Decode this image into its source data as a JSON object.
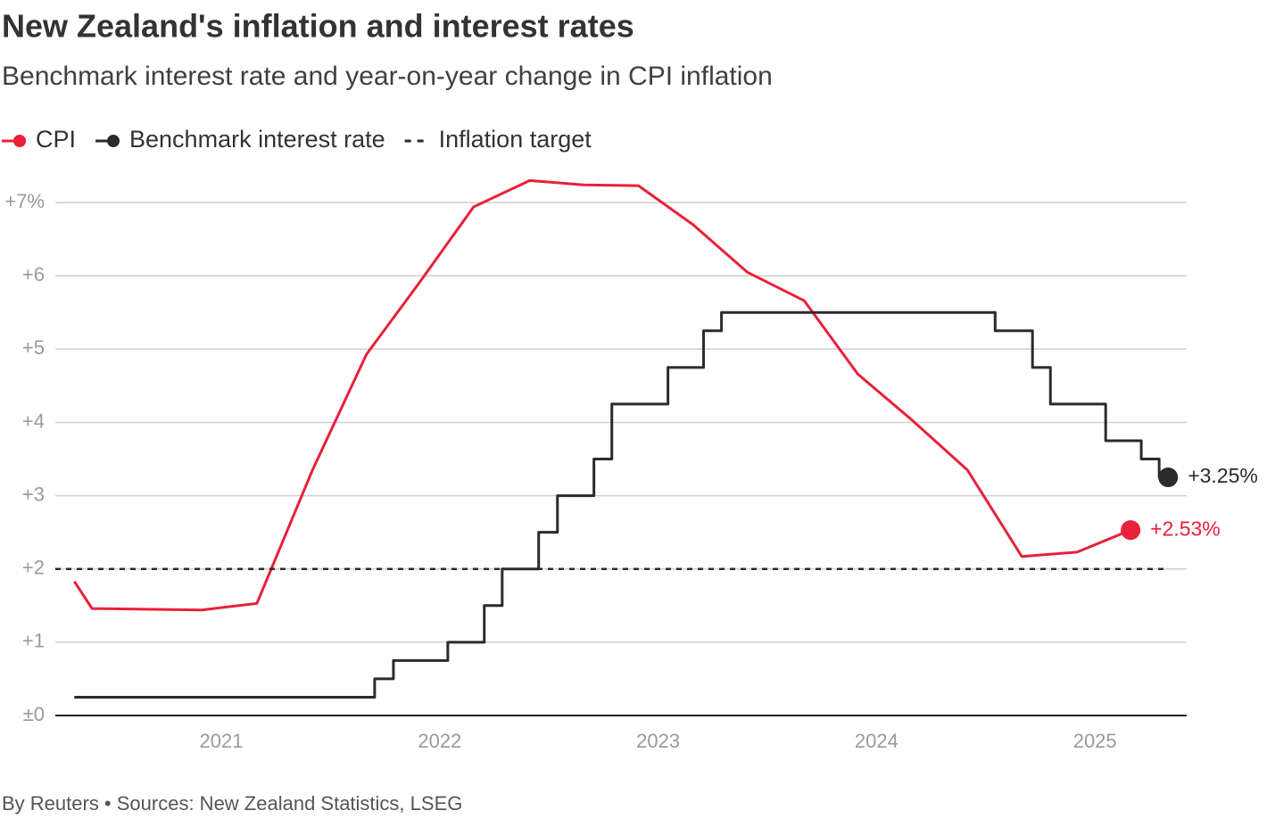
{
  "chart_data": {
    "type": "line",
    "title": "New Zealand's inflation and interest rates",
    "subtitle": "Benchmark interest rate and year-on-year change in CPI inflation",
    "source": "By Reuters • Sources: New Zealand Statistics, LSEG",
    "xlim": [
      2020.24,
      2025.42
    ],
    "xticks": [
      2021,
      2022,
      2023,
      2024,
      2025
    ],
    "ylim": [
      0,
      7.5
    ],
    "yticks": [
      {
        "value": 0,
        "label": "±0"
      },
      {
        "value": 1,
        "label": "+1"
      },
      {
        "value": 2,
        "label": "+2"
      },
      {
        "value": 3,
        "label": "+3"
      },
      {
        "value": 4,
        "label": "+4"
      },
      {
        "value": 5,
        "label": "+5"
      },
      {
        "value": 6,
        "label": "+6"
      },
      {
        "value": 7,
        "label": "+7%"
      }
    ],
    "grid": true,
    "legend": "top-left",
    "series": [
      {
        "name": "CPI",
        "color": "#e8203a",
        "line_style": "solid",
        "x": [
          2020.327,
          2020.408,
          2020.657,
          2020.91,
          2021.163,
          2021.416,
          2021.665,
          2021.91,
          2022.155,
          2022.412,
          2022.661,
          2022.91,
          2023.159,
          2023.408,
          2023.669,
          2023.914,
          2024.163,
          2024.416,
          2024.665,
          2024.918,
          2025.163
        ],
        "values": [
          1.83,
          1.46,
          1.45,
          1.44,
          1.53,
          3.34,
          4.93,
          5.92,
          6.94,
          7.3,
          7.24,
          7.23,
          6.7,
          6.05,
          5.66,
          4.66,
          4.03,
          3.35,
          2.17,
          2.23,
          2.53
        ],
        "value_labels": [
          null,
          null,
          null,
          null,
          null,
          null,
          null,
          null,
          null,
          null,
          null,
          null,
          null,
          null,
          null,
          null,
          null,
          null,
          null,
          null,
          "+2.53%"
        ]
      },
      {
        "name": "Benchmark interest rate",
        "color": "#2b2b2b",
        "line_style": "step",
        "x": [
          2020.327,
          2021.702,
          2021.788,
          2022.037,
          2022.204,
          2022.286,
          2022.453,
          2022.539,
          2022.706,
          2022.788,
          2023.045,
          2023.208,
          2023.29,
          2024.543,
          2024.714,
          2024.796,
          2025.049,
          2025.212,
          2025.294,
          2025.335
        ],
        "values": [
          0.25,
          0.5,
          0.75,
          1,
          1.5,
          2,
          2.5,
          3,
          3.5,
          4.25,
          4.75,
          5.25,
          5.5,
          5.25,
          4.75,
          4.25,
          3.75,
          3.5,
          3.25,
          3.25
        ],
        "value_labels": [
          null,
          null,
          null,
          null,
          null,
          null,
          null,
          null,
          null,
          null,
          null,
          null,
          null,
          null,
          null,
          null,
          null,
          null,
          null,
          "+3.25%"
        ]
      },
      {
        "name": "Inflation target",
        "color": "#2b2b2b",
        "line_style": "dashed",
        "x": [
          2020.24,
          2025.335
        ],
        "values": [
          2,
          2
        ]
      }
    ]
  }
}
